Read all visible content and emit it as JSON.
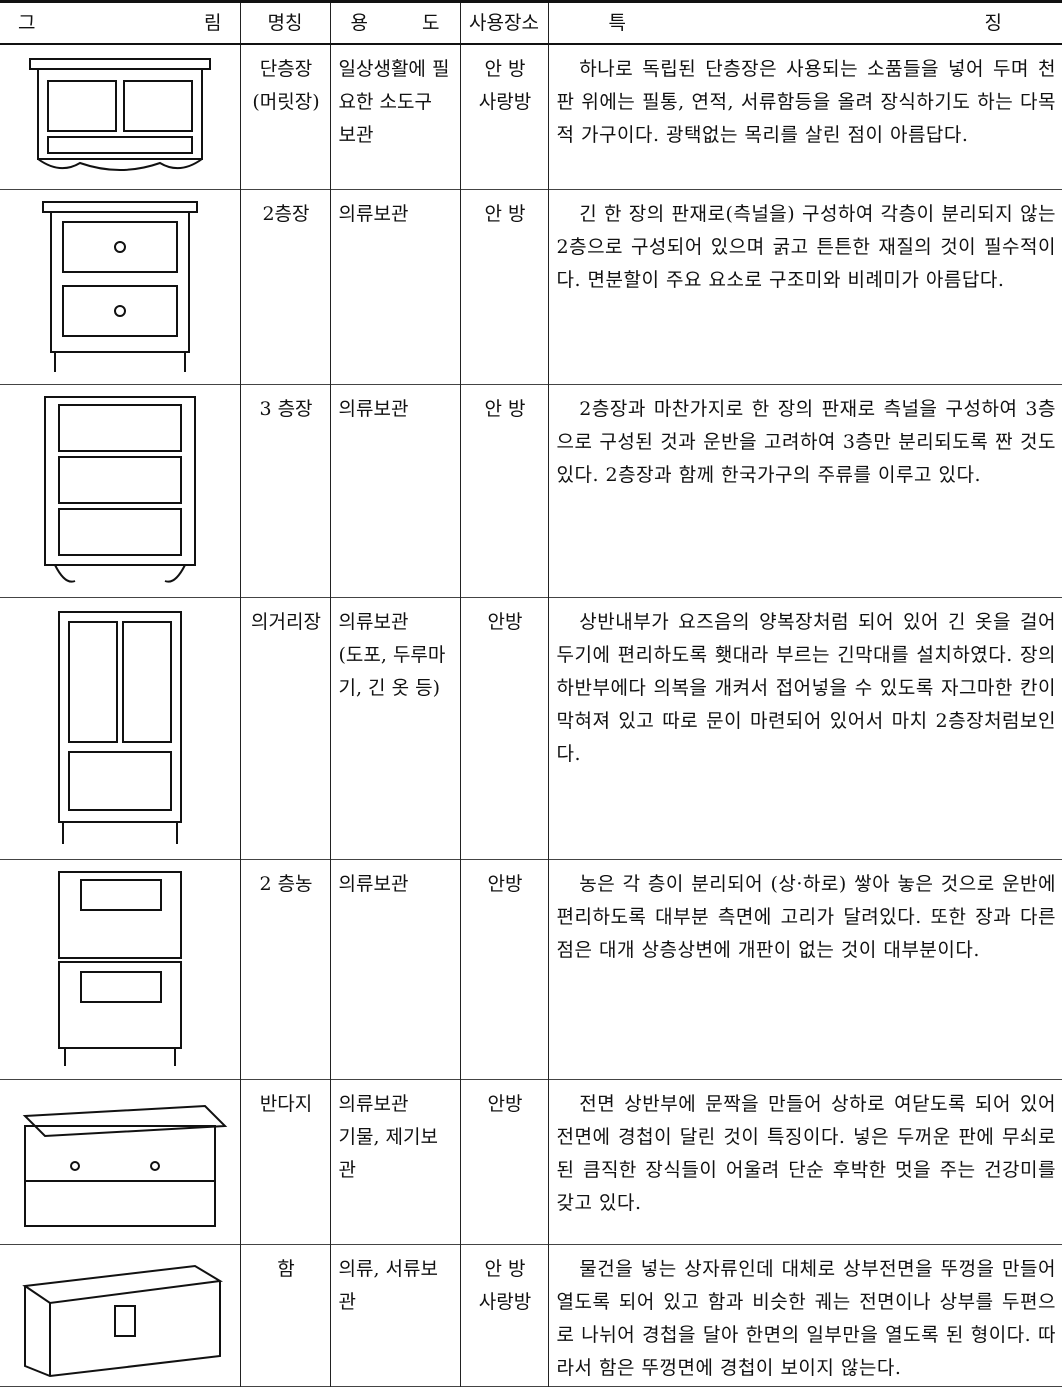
{
  "table": {
    "header": [
      "그 림",
      "명칭",
      "용 도",
      "사용장소",
      "특 징"
    ],
    "rows": [
      [
        "단층장\n(머릿장)",
        "일상생활에 필요한 소도구 보관",
        "안 방\n사랑방",
        "하나로 독립된 단층장은 사용되는 소품들을 넣어 두며 천판 위에는 필통, 연적, 서류함등을 올려 장식하기도 하는 다목적 가구이다. 광택없는 목리를 살린 점이 아름답다."
      ],
      [
        "2층장",
        "의류보관",
        "안 방",
        "긴 한 장의 판재로(측널을) 구성하여 각층이 분리되지 않는 2층으로 구성되어 있으며 굵고 튼튼한 재질의 것이 필수적이다. 면분할이 주요 요소로 구조미와 비례미가 아름답다."
      ],
      [
        "3 층장",
        "의류보관",
        "안 방",
        "2층장과 마찬가지로 한 장의 판재로 측널을 구성하여 3층으로 구성된 것과 운반을 고려하여 3층만 분리되도록 짠 것도 있다. 2층장과 함께 한국가구의 주류를 이루고 있다."
      ],
      [
        "의거리장",
        "의류보관\n(도포, 두루마기, 긴 옷 등)",
        "안방",
        "상반내부가 요즈음의 양복장처럼 되어 있어 긴 옷을 걸어두기에 편리하도록 횃대라 부르는 긴막대를 설치하였다. 장의 하반부에다 의복을 개켜서 접어넣을 수 있도록 자그마한 칸이 막혀져 있고 따로 문이 마련되어 있어서 마치 2층장처럼보인다."
      ],
      [
        "2 층농",
        "의류보관",
        "안방",
        "농은 각 층이 분리되어 (상·하로) 쌓아 놓은 것으로 운반에 편리하도록 대부분 측면에 고리가 달려있다. 또한 장과 다른 점은 대개 상층상변에 개판이 없는 것이 대부분이다."
      ],
      [
        "반다지",
        "의류보관\n기물, 제기보관",
        "안방",
        "전면 상반부에 문짝을 만들어 상하로 여닫도록 되어 있어 전면에 경첩이 달린 것이 특징이다. 넣은 두꺼운 판에 무쇠로 된 큼직한 장식들이 어울려 단순 후박한 멋을 주는 건강미를 갖고 있다."
      ],
      [
        "함",
        "의류, 서류보관",
        "안 방\n사랑방",
        "물건을 넣는 상자류인데 대체로 상부전면을 뚜껑을 만들어 열도록 되어 있고 함과 비슷한 궤는 전면이나 상부를 두편으로 나뉘어 경첩을 달아 한면의 일부만을 열도록 된 형이다. 따라서 함은 뚜껑면에 경첩이 보이지 않는다."
      ]
    ]
  }
}
